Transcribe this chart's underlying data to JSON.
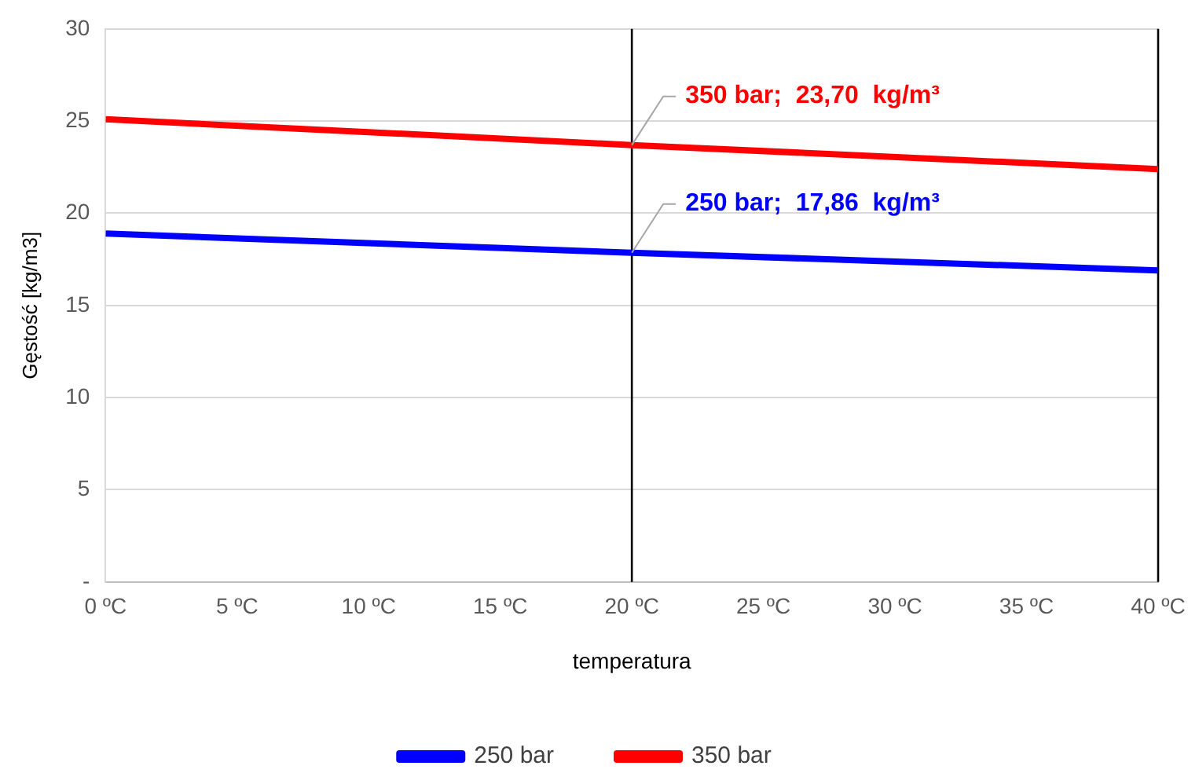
{
  "chart_data": {
    "type": "line",
    "xlabel": "temperatura",
    "ylabel": "Gęstość [kg/m3]",
    "x": [
      0,
      20,
      40
    ],
    "series": [
      {
        "name": "250 bar",
        "color": "#0000ff",
        "values": [
          18.9,
          17.86,
          16.9
        ]
      },
      {
        "name": "350 bar",
        "color": "#ff0000",
        "values": [
          25.1,
          23.7,
          22.4
        ]
      }
    ],
    "xlim": [
      0,
      40
    ],
    "xticks": [
      {
        "value": 0,
        "label": "0 ºC"
      },
      {
        "value": 5,
        "label": "5 ºC"
      },
      {
        "value": 10,
        "label": "10 ºC"
      },
      {
        "value": 15,
        "label": "15 ºC"
      },
      {
        "value": 20,
        "label": "20 ºC"
      },
      {
        "value": 25,
        "label": "25 ºC"
      },
      {
        "value": 30,
        "label": "30 ºC"
      },
      {
        "value": 35,
        "label": "35 ºC"
      },
      {
        "value": 40,
        "label": "40 ºC"
      }
    ],
    "ylim": [
      0,
      30
    ],
    "yticks": [
      {
        "value": 0,
        "label": "-"
      },
      5,
      10,
      15,
      20,
      25,
      30
    ],
    "ref_lines": [
      {
        "axis": "x",
        "value": 20,
        "color": "#000000"
      },
      {
        "axis": "x",
        "value": 40,
        "color": "#000000"
      }
    ],
    "annotations": [
      {
        "text": "350 bar;  23,70  kg/m³",
        "x": 20,
        "y": 23.7
      },
      {
        "text": "250 bar;  17,86  kg/m³",
        "x": 20,
        "y": 17.86
      }
    ],
    "grid": "y",
    "legend": "bottom",
    "marker": "none",
    "line_style": "solid"
  }
}
